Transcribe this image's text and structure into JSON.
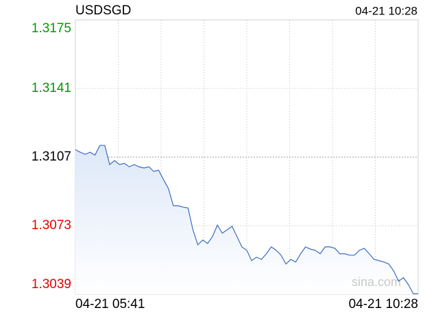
{
  "chart_data": {
    "type": "line",
    "title": "USDSGD",
    "timestamp": "04-21 10:28",
    "watermark": "sina.com",
    "categories": [
      "04-21 05:41",
      null,
      null,
      null,
      null,
      null,
      null,
      null,
      null,
      null,
      null,
      null,
      null,
      null,
      null,
      null,
      null,
      null,
      null,
      null,
      null,
      null,
      null,
      null,
      null,
      null,
      null,
      null,
      null,
      null,
      null,
      null,
      null,
      null,
      null,
      null,
      null,
      null,
      null,
      null,
      null,
      null,
      null,
      null,
      null,
      null,
      null,
      null,
      null,
      null,
      null,
      null,
      null,
      null,
      null,
      null,
      null,
      null,
      null,
      null,
      null,
      null,
      null,
      null,
      null,
      null,
      null,
      null,
      null,
      null,
      "04-21 10:28"
    ],
    "series": [
      {
        "name": "USDSGD",
        "color": "#3a6bbf",
        "values": [
          1.31107,
          1.31094,
          1.31084,
          1.31094,
          1.3108,
          1.31128,
          1.31128,
          1.31033,
          1.31053,
          1.31033,
          1.31039,
          1.31022,
          1.31033,
          1.31022,
          1.31016,
          1.31022,
          1.30999,
          1.31005,
          1.30958,
          1.30914,
          1.30829,
          1.30829,
          1.30822,
          1.30818,
          1.3071,
          1.30635,
          1.30659,
          1.30642,
          1.30676,
          1.30733,
          1.30693,
          1.3071,
          1.30727,
          1.30676,
          1.30625,
          1.30608,
          1.30557,
          1.30574,
          1.30563,
          1.30591,
          1.30625,
          1.30608,
          1.30584,
          1.3054,
          1.30563,
          1.3055,
          1.30591,
          1.30625,
          1.30614,
          1.30608,
          1.30591,
          1.30625,
          1.30625,
          1.30618,
          1.30591,
          1.30591,
          1.30584,
          1.30584,
          1.30608,
          1.30618,
          1.30591,
          1.30563,
          1.30557,
          1.3055,
          1.3054,
          1.30506,
          1.30455,
          1.30472,
          1.30438,
          1.30393,
          1.30393
        ]
      }
    ],
    "ylim": [
      1.3039,
      1.3175
    ],
    "yticks": [
      1.3175,
      1.3141,
      1.3107,
      1.3073,
      1.3039
    ],
    "reference_value": 1.3107,
    "up_color": "#009900",
    "down_color": "#e60000",
    "flat_color": "#000000",
    "grid": true,
    "x_grid_divisions": 8
  }
}
